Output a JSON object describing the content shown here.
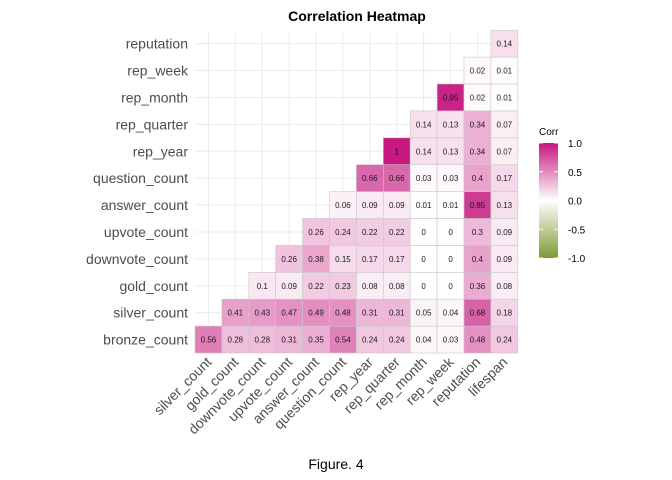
{
  "caption": "Figure. 4",
  "chart_data": {
    "type": "heatmap",
    "title": "Correlation Heatmap",
    "variables_x": [
      "silver_count",
      "gold_count",
      "downvote_count",
      "upvote_count",
      "answer_count",
      "question_count",
      "rep_year",
      "rep_quarter",
      "rep_month",
      "rep_week",
      "reputation",
      "lifespan"
    ],
    "variables_y": [
      "bronze_count",
      "silver_count",
      "gold_count",
      "downvote_count",
      "upvote_count",
      "answer_count",
      "question_count",
      "rep_year",
      "rep_quarter",
      "rep_month",
      "rep_week",
      "reputation"
    ],
    "values": [
      [
        0.56,
        0.28,
        0.28,
        0.31,
        0.35,
        0.54,
        0.24,
        0.24,
        0.04,
        0.03,
        0.48,
        0.24
      ],
      [
        null,
        0.41,
        0.43,
        0.47,
        0.49,
        0.48,
        0.31,
        0.31,
        0.05,
        0.04,
        0.68,
        0.18
      ],
      [
        null,
        null,
        0.1,
        0.09,
        0.22,
        0.23,
        0.08,
        0.08,
        0,
        0,
        0.36,
        0.08
      ],
      [
        null,
        null,
        null,
        0.26,
        0.38,
        0.15,
        0.17,
        0.17,
        0,
        0,
        0.4,
        0.09
      ],
      [
        null,
        null,
        null,
        null,
        0.26,
        0.24,
        0.22,
        0.22,
        0,
        0,
        0.3,
        0.09
      ],
      [
        null,
        null,
        null,
        null,
        null,
        0.06,
        0.09,
        0.09,
        0.01,
        0.01,
        0.85,
        0.13
      ],
      [
        null,
        null,
        null,
        null,
        null,
        null,
        0.66,
        0.66,
        0.03,
        0.03,
        0.4,
        0.17
      ],
      [
        null,
        null,
        null,
        null,
        null,
        null,
        null,
        1,
        0.14,
        0.13,
        0.34,
        0.07
      ],
      [
        null,
        null,
        null,
        null,
        null,
        null,
        null,
        null,
        0.14,
        0.13,
        0.34,
        0.07
      ],
      [
        null,
        null,
        null,
        null,
        null,
        null,
        null,
        null,
        null,
        0.95,
        0.02,
        0.01
      ],
      [
        null,
        null,
        null,
        null,
        null,
        null,
        null,
        null,
        null,
        null,
        0.02,
        0.01
      ],
      [
        null,
        null,
        null,
        null,
        null,
        null,
        null,
        null,
        null,
        null,
        null,
        0.14
      ]
    ],
    "legend": {
      "title": "Corr",
      "ticks": [
        "1.0",
        "0.5",
        "0.0",
        "-0.5",
        "-1.0"
      ],
      "tick_values": [
        1,
        0.5,
        0,
        -0.5,
        -1
      ],
      "range": [
        -1,
        1
      ],
      "placement": "right"
    },
    "colors": {
      "low": "#7f9a35",
      "mid": "#ffffff",
      "high": "#c6187f"
    },
    "grid": true
  }
}
